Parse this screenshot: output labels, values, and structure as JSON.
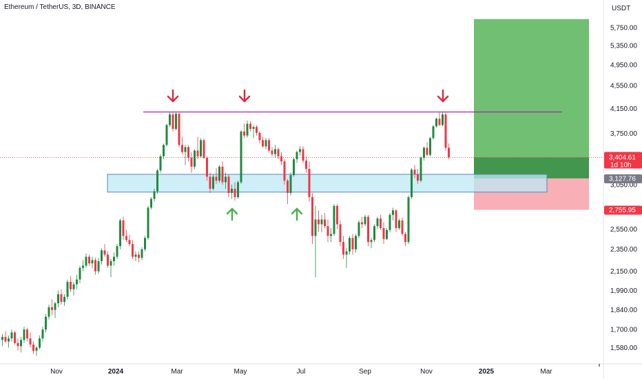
{
  "header": {
    "title": "Ethereum / TetherUS, 3D, BINANCE"
  },
  "price_axis": {
    "currency": "USDT",
    "labels": [
      "5,750.00",
      "5,350.00",
      "4,950.00",
      "4,550.00",
      "4,150.00",
      "3,750.00",
      "3,050.00",
      "2,550.00",
      "2,350.00",
      "2,150.00",
      "1,990.00",
      "1,840.00",
      "1,700.00",
      "1,580.00"
    ]
  },
  "time_axis": {
    "labels": [
      {
        "text": "Nov",
        "bold": false
      },
      {
        "text": "2024",
        "bold": true
      },
      {
        "text": "Mar",
        "bold": false
      },
      {
        "text": "May",
        "bold": false
      },
      {
        "text": "Jul",
        "bold": false
      },
      {
        "text": "Sep",
        "bold": false
      },
      {
        "text": "Nov",
        "bold": false
      },
      {
        "text": "2025",
        "bold": true
      },
      {
        "text": "Mar",
        "bold": false
      }
    ]
  },
  "badges": {
    "last_price": "3,404.61",
    "countdown": "1d 10h",
    "entry": "3,127.76",
    "stop": "2,755.95"
  },
  "colors": {
    "up": "#089981",
    "up_candle": "#1e8a3e",
    "down": "#f23645",
    "resistance": "#9c27b0",
    "support_zone": "#bde8f5",
    "target_zone": "#4caf50",
    "stop_zone": "#f7a1a8",
    "arrow_down": "#d32f3f",
    "arrow_up": "#4caf50"
  },
  "chart_data": {
    "type": "candlestick",
    "title": "Ethereum / TetherUS, 3D, BINANCE",
    "y_scale": "log",
    "ylim": [
      1520,
      6000
    ],
    "grid": false,
    "candles": [
      [
        1630,
        1670,
        1590,
        1650
      ],
      [
        1650,
        1690,
        1610,
        1620
      ],
      [
        1620,
        1660,
        1580,
        1640
      ],
      [
        1640,
        1700,
        1620,
        1680
      ],
      [
        1680,
        1690,
        1600,
        1610
      ],
      [
        1610,
        1640,
        1560,
        1590
      ],
      [
        1590,
        1650,
        1550,
        1630
      ],
      [
        1630,
        1720,
        1610,
        1700
      ],
      [
        1700,
        1710,
        1620,
        1640
      ],
      [
        1640,
        1680,
        1580,
        1600
      ],
      [
        1600,
        1620,
        1540,
        1560
      ],
      [
        1560,
        1590,
        1530,
        1580
      ],
      [
        1580,
        1660,
        1570,
        1640
      ],
      [
        1640,
        1720,
        1620,
        1700
      ],
      [
        1700,
        1810,
        1680,
        1790
      ],
      [
        1790,
        1880,
        1770,
        1860
      ],
      [
        1860,
        1920,
        1800,
        1840
      ],
      [
        1840,
        1900,
        1780,
        1890
      ],
      [
        1890,
        1990,
        1860,
        1960
      ],
      [
        1960,
        2000,
        1880,
        1900
      ],
      [
        1900,
        1960,
        1870,
        1940
      ],
      [
        1940,
        2080,
        1920,
        2060
      ],
      [
        2060,
        2110,
        1980,
        2000
      ],
      [
        2000,
        2060,
        1950,
        2040
      ],
      [
        2040,
        2120,
        2000,
        2080
      ],
      [
        2080,
        2200,
        2050,
        2180
      ],
      [
        2180,
        2250,
        2150,
        2200
      ],
      [
        2200,
        2310,
        2180,
        2280
      ],
      [
        2280,
        2300,
        2200,
        2220
      ],
      [
        2220,
        2280,
        2180,
        2250
      ],
      [
        2250,
        2270,
        2120,
        2150
      ],
      [
        2150,
        2270,
        2130,
        2240
      ],
      [
        2240,
        2360,
        2210,
        2340
      ],
      [
        2340,
        2400,
        2280,
        2300
      ],
      [
        2300,
        2330,
        2180,
        2200
      ],
      [
        2200,
        2260,
        2100,
        2240
      ],
      [
        2240,
        2320,
        2200,
        2280
      ],
      [
        2280,
        2400,
        2260,
        2380
      ],
      [
        2380,
        2660,
        2350,
        2640
      ],
      [
        2640,
        2680,
        2440,
        2480
      ],
      [
        2480,
        2540,
        2420,
        2440
      ],
      [
        2440,
        2490,
        2380,
        2400
      ],
      [
        2400,
        2440,
        2260,
        2280
      ],
      [
        2280,
        2330,
        2240,
        2300
      ],
      [
        2300,
        2330,
        2230,
        2270
      ],
      [
        2270,
        2370,
        2250,
        2350
      ],
      [
        2350,
        2480,
        2330,
        2460
      ],
      [
        2460,
        2800,
        2440,
        2780
      ],
      [
        2780,
        2900,
        2760,
        2880
      ],
      [
        2880,
        3000,
        2850,
        2970
      ],
      [
        2970,
        3250,
        2940,
        3230
      ],
      [
        3230,
        3450,
        3200,
        3420
      ],
      [
        3420,
        3600,
        3380,
        3580
      ],
      [
        3580,
        3900,
        3560,
        3880
      ],
      [
        3880,
        4080,
        3850,
        4050
      ],
      [
        4050,
        4100,
        3780,
        3820
      ],
      [
        3820,
        4090,
        3800,
        4060
      ],
      [
        4060,
        4080,
        3550,
        3580
      ],
      [
        3580,
        3700,
        3450,
        3480
      ],
      [
        3480,
        3580,
        3300,
        3550
      ],
      [
        3550,
        3580,
        3350,
        3400
      ],
      [
        3400,
        3480,
        3200,
        3280
      ],
      [
        3280,
        3520,
        3250,
        3500
      ],
      [
        3500,
        3700,
        3380,
        3420
      ],
      [
        3420,
        3680,
        3400,
        3650
      ],
      [
        3650,
        3670,
        3380,
        3400
      ],
      [
        3400,
        3420,
        3100,
        3150
      ],
      [
        3150,
        3200,
        2950,
        3000
      ],
      [
        3000,
        3180,
        2980,
        3150
      ],
      [
        3150,
        3260,
        3060,
        3100
      ],
      [
        3100,
        3300,
        3070,
        3280
      ],
      [
        3280,
        3350,
        3050,
        3080
      ],
      [
        3080,
        3200,
        3000,
        3150
      ],
      [
        3150,
        3180,
        2900,
        2950
      ],
      [
        2950,
        3050,
        2880,
        3000
      ],
      [
        3000,
        3080,
        2860,
        2900
      ],
      [
        2900,
        3100,
        2880,
        3080
      ],
      [
        3080,
        3800,
        3060,
        3780
      ],
      [
        3780,
        3900,
        3680,
        3720
      ],
      [
        3720,
        3950,
        3690,
        3900
      ],
      [
        3900,
        3940,
        3780,
        3820
      ],
      [
        3820,
        3880,
        3680,
        3850
      ],
      [
        3850,
        3880,
        3720,
        3760
      ],
      [
        3760,
        3780,
        3600,
        3650
      ],
      [
        3650,
        3700,
        3540,
        3560
      ],
      [
        3560,
        3680,
        3520,
        3650
      ],
      [
        3650,
        3680,
        3470,
        3500
      ],
      [
        3500,
        3550,
        3420,
        3450
      ],
      [
        3450,
        3580,
        3400,
        3520
      ],
      [
        3520,
        3540,
        3380,
        3420
      ],
      [
        3420,
        3480,
        3300,
        3350
      ],
      [
        3350,
        3380,
        3050,
        3100
      ],
      [
        3100,
        3120,
        2820,
        2950
      ],
      [
        2950,
        3200,
        2920,
        3170
      ],
      [
        3170,
        3400,
        3150,
        3380
      ],
      [
        3380,
        3500,
        3330,
        3480
      ],
      [
        3480,
        3560,
        3430,
        3520
      ],
      [
        3520,
        3560,
        3330,
        3360
      ],
      [
        3360,
        3420,
        3200,
        3250
      ],
      [
        3250,
        3350,
        2850,
        2900
      ],
      [
        2900,
        2950,
        2400,
        2480
      ],
      [
        2480,
        2800,
        2100,
        2650
      ],
      [
        2650,
        2750,
        2520,
        2600
      ],
      [
        2600,
        2700,
        2520,
        2650
      ],
      [
        2650,
        2720,
        2560,
        2580
      ],
      [
        2580,
        2650,
        2420,
        2480
      ],
      [
        2480,
        2560,
        2420,
        2500
      ],
      [
        2500,
        2820,
        2480,
        2800
      ],
      [
        2800,
        2820,
        2550,
        2600
      ],
      [
        2600,
        2640,
        2380,
        2420
      ],
      [
        2420,
        2480,
        2260,
        2300
      ],
      [
        2300,
        2360,
        2180,
        2330
      ],
      [
        2330,
        2480,
        2300,
        2460
      ],
      [
        2460,
        2500,
        2300,
        2350
      ],
      [
        2350,
        2500,
        2320,
        2480
      ],
      [
        2480,
        2640,
        2460,
        2620
      ],
      [
        2620,
        2680,
        2560,
        2600
      ],
      [
        2600,
        2700,
        2580,
        2680
      ],
      [
        2680,
        2700,
        2380,
        2420
      ],
      [
        2420,
        2460,
        2360,
        2440
      ],
      [
        2440,
        2600,
        2420,
        2580
      ],
      [
        2580,
        2680,
        2550,
        2660
      ],
      [
        2660,
        2700,
        2540,
        2560
      ],
      [
        2560,
        2620,
        2400,
        2450
      ],
      [
        2450,
        2560,
        2440,
        2540
      ],
      [
        2540,
        2720,
        2520,
        2700
      ],
      [
        2700,
        2780,
        2640,
        2750
      ],
      [
        2750,
        2760,
        2520,
        2560
      ],
      [
        2560,
        2660,
        2540,
        2640
      ],
      [
        2640,
        2670,
        2480,
        2500
      ],
      [
        2500,
        2520,
        2380,
        2420
      ],
      [
        2420,
        2920,
        2400,
        2900
      ],
      [
        2900,
        3260,
        2880,
        3240
      ],
      [
        3240,
        3300,
        3130,
        3180
      ],
      [
        3180,
        3250,
        3060,
        3100
      ],
      [
        3100,
        3420,
        3080,
        3400
      ],
      [
        3400,
        3560,
        3360,
        3540
      ],
      [
        3540,
        3620,
        3420,
        3440
      ],
      [
        3440,
        3700,
        3420,
        3680
      ],
      [
        3680,
        3880,
        3660,
        3860
      ],
      [
        3860,
        4000,
        3840,
        3980
      ],
      [
        3980,
        4080,
        3860,
        3880
      ],
      [
        3880,
        4100,
        3860,
        4050
      ],
      [
        4050,
        4080,
        3500,
        3540
      ],
      [
        3540,
        3600,
        3380,
        3404.61
      ]
    ],
    "annotations": {
      "resistance_price": 4090,
      "support_zone": [
        2960,
        3180
      ],
      "long_position": {
        "entry": 3127.76,
        "target": 5950,
        "stop": 2755.95,
        "current": 3404.61
      },
      "down_arrows_at_candle": [
        55,
        78,
        142
      ],
      "up_arrows_at_candle": [
        74,
        95
      ]
    }
  }
}
